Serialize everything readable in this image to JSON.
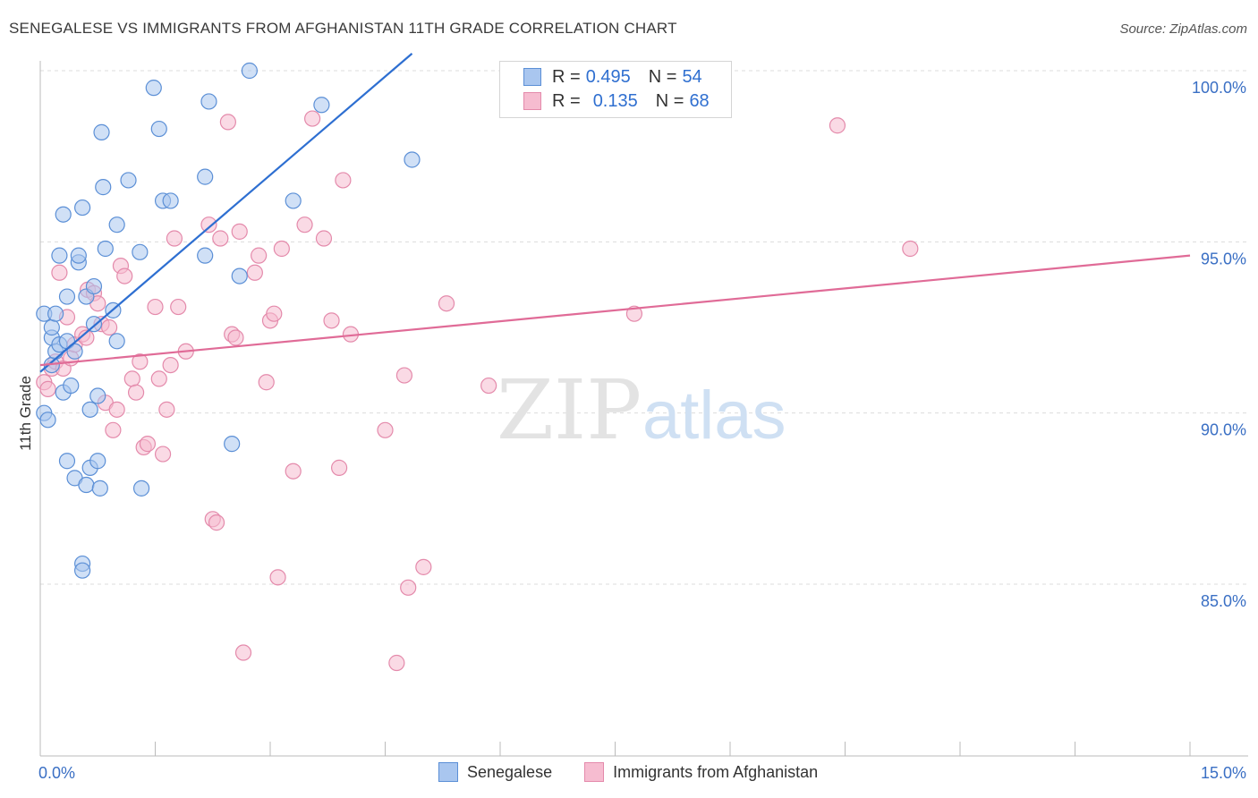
{
  "title": "SENEGALESE VS IMMIGRANTS FROM AFGHANISTAN 11TH GRADE CORRELATION CHART",
  "source": "Source: ZipAtlas.com",
  "watermark": {
    "zip": "ZIP",
    "atlas": "atlas"
  },
  "legend": {
    "rows": [
      {
        "r_label": "R =",
        "r_value": "0.495",
        "n_label": "N =",
        "n_value": "54"
      },
      {
        "r_label": "R =",
        "r_value": "0.135",
        "n_label": "N =",
        "n_value": "68"
      }
    ]
  },
  "colors": {
    "blue_fill": "#a9c6ef",
    "blue_stroke": "#5b8fd6",
    "blue_line": "#2e6fd1",
    "pink_fill": "#f6bcd0",
    "pink_stroke": "#e48aab",
    "pink_line": "#e06b97",
    "tick_label": "#3a6fc4",
    "grid": "#dcdcdc"
  },
  "chart_data": {
    "type": "scatter",
    "title": "SENEGALESE VS IMMIGRANTS FROM AFGHANISTAN 11TH GRADE CORRELATION CHART",
    "xlabel": "",
    "ylabel": "11th Grade",
    "xlim": [
      0,
      15
    ],
    "ylim": [
      80.3,
      100.5
    ],
    "x_tick_labels": [
      {
        "value": 0,
        "label": "0.0%"
      },
      {
        "value": 15,
        "label": "15.0%"
      }
    ],
    "y_tick_labels": [
      {
        "value": 100,
        "label": "100.0%"
      },
      {
        "value": 95,
        "label": "95.0%"
      },
      {
        "value": 90,
        "label": "90.0%"
      },
      {
        "value": 85,
        "label": "85.0%"
      }
    ],
    "grid": true,
    "series": [
      {
        "name": "Senegalese",
        "trend": {
          "x": [
            0.0,
            4.85
          ],
          "y": [
            91.2,
            100.5
          ]
        },
        "points": [
          [
            0.05,
            92.9
          ],
          [
            0.05,
            90.0
          ],
          [
            0.1,
            89.8
          ],
          [
            0.15,
            92.2
          ],
          [
            0.15,
            91.4
          ],
          [
            0.15,
            92.5
          ],
          [
            0.2,
            91.8
          ],
          [
            0.2,
            92.9
          ],
          [
            0.25,
            94.6
          ],
          [
            0.25,
            92.0
          ],
          [
            0.3,
            95.8
          ],
          [
            0.3,
            90.6
          ],
          [
            0.35,
            93.4
          ],
          [
            0.35,
            92.1
          ],
          [
            0.35,
            88.6
          ],
          [
            0.4,
            90.8
          ],
          [
            0.45,
            91.8
          ],
          [
            0.45,
            88.1
          ],
          [
            0.5,
            94.4
          ],
          [
            0.5,
            94.6
          ],
          [
            0.55,
            96.0
          ],
          [
            0.55,
            85.6
          ],
          [
            0.55,
            85.4
          ],
          [
            0.6,
            93.4
          ],
          [
            0.6,
            87.9
          ],
          [
            0.65,
            90.1
          ],
          [
            0.65,
            88.4
          ],
          [
            0.7,
            93.7
          ],
          [
            0.7,
            92.6
          ],
          [
            0.75,
            90.5
          ],
          [
            0.75,
            88.6
          ],
          [
            0.78,
            87.8
          ],
          [
            0.8,
            98.2
          ],
          [
            0.82,
            96.6
          ],
          [
            0.85,
            94.8
          ],
          [
            0.95,
            93.0
          ],
          [
            1.0,
            95.5
          ],
          [
            1.0,
            92.1
          ],
          [
            1.15,
            96.8
          ],
          [
            1.3,
            94.7
          ],
          [
            1.32,
            87.8
          ],
          [
            1.48,
            99.5
          ],
          [
            1.55,
            98.3
          ],
          [
            1.6,
            96.2
          ],
          [
            1.7,
            96.2
          ],
          [
            2.15,
            96.9
          ],
          [
            2.15,
            94.6
          ],
          [
            2.2,
            99.1
          ],
          [
            2.5,
            89.1
          ],
          [
            2.6,
            94.0
          ],
          [
            2.73,
            100.0
          ],
          [
            3.3,
            96.2
          ],
          [
            3.67,
            99.0
          ],
          [
            4.85,
            97.4
          ]
        ]
      },
      {
        "name": "Immigrants from Afghanistan",
        "trend": {
          "x": [
            0.0,
            15.0
          ],
          "y": [
            91.4,
            94.6
          ]
        },
        "points": [
          [
            0.05,
            90.9
          ],
          [
            0.1,
            90.7
          ],
          [
            0.15,
            91.3
          ],
          [
            0.2,
            91.5
          ],
          [
            0.25,
            94.1
          ],
          [
            0.3,
            91.3
          ],
          [
            0.35,
            92.8
          ],
          [
            0.4,
            91.6
          ],
          [
            0.45,
            92.0
          ],
          [
            0.55,
            92.3
          ],
          [
            0.6,
            92.2
          ],
          [
            0.62,
            93.6
          ],
          [
            0.7,
            93.5
          ],
          [
            0.75,
            93.2
          ],
          [
            0.8,
            92.6
          ],
          [
            0.85,
            90.3
          ],
          [
            0.9,
            92.5
          ],
          [
            0.95,
            89.5
          ],
          [
            1.0,
            90.1
          ],
          [
            1.05,
            94.3
          ],
          [
            1.1,
            94.0
          ],
          [
            1.2,
            91.0
          ],
          [
            1.25,
            90.6
          ],
          [
            1.3,
            91.5
          ],
          [
            1.35,
            89.0
          ],
          [
            1.4,
            89.1
          ],
          [
            1.5,
            93.1
          ],
          [
            1.55,
            91.0
          ],
          [
            1.6,
            88.8
          ],
          [
            1.65,
            90.1
          ],
          [
            1.7,
            91.4
          ],
          [
            1.75,
            95.1
          ],
          [
            1.8,
            93.1
          ],
          [
            1.9,
            91.8
          ],
          [
            2.2,
            95.5
          ],
          [
            2.25,
            86.9
          ],
          [
            2.3,
            86.8
          ],
          [
            2.35,
            95.1
          ],
          [
            2.45,
            98.5
          ],
          [
            2.5,
            92.3
          ],
          [
            2.55,
            92.2
          ],
          [
            2.6,
            95.3
          ],
          [
            2.65,
            83.0
          ],
          [
            2.8,
            94.1
          ],
          [
            2.85,
            94.6
          ],
          [
            2.95,
            90.9
          ],
          [
            3.0,
            92.7
          ],
          [
            3.05,
            92.9
          ],
          [
            3.1,
            85.2
          ],
          [
            3.15,
            94.8
          ],
          [
            3.3,
            88.3
          ],
          [
            3.45,
            95.5
          ],
          [
            3.55,
            98.6
          ],
          [
            3.7,
            95.1
          ],
          [
            3.8,
            92.7
          ],
          [
            3.9,
            88.4
          ],
          [
            3.95,
            96.8
          ],
          [
            4.05,
            92.3
          ],
          [
            4.5,
            89.5
          ],
          [
            4.65,
            82.7
          ],
          [
            4.75,
            91.1
          ],
          [
            4.8,
            84.9
          ],
          [
            5.0,
            85.5
          ],
          [
            5.3,
            93.2
          ],
          [
            5.85,
            90.8
          ],
          [
            7.75,
            92.9
          ],
          [
            10.4,
            98.4
          ],
          [
            11.35,
            94.8
          ]
        ]
      }
    ]
  }
}
